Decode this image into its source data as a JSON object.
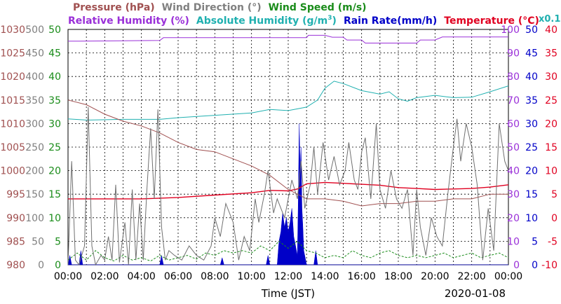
{
  "chart_data": {
    "type": "line",
    "header": {
      "row1": [
        {
          "text": "Pressure (hPa)",
          "color": "#a05050"
        },
        {
          "text": "Wind Direction (°)",
          "color": "#808080"
        },
        {
          "text": "Wind Speed (m/s)",
          "color": "#1a8c1a"
        }
      ],
      "row2": [
        {
          "text": "Relative Humidity (%)",
          "color": "#9a30d8"
        },
        {
          "text": "Absolute Humidity (g/m",
          "sup": "3",
          "tail": ")",
          "color": "#20b0b0"
        },
        {
          "text": "Rain Rate(mm/h)",
          "color": "#0000c8"
        },
        {
          "text": "Temperature (°C)",
          "color": "#e00020"
        }
      ],
      "multiplier": "x0.1",
      "multiplier_color": "#20b0b0"
    },
    "axes": {
      "pressure": {
        "min": 980,
        "max": 1030,
        "ticks": [
          "980",
          "985",
          "990",
          "995",
          "1000",
          "1005",
          "1010",
          "1015",
          "1020",
          "1025",
          "1030"
        ],
        "color": "#a05050"
      },
      "wind_direction": {
        "min": 0,
        "max": 500,
        "ticks": [
          "0",
          "50",
          "100",
          "150",
          "200",
          "250",
          "300",
          "350",
          "400",
          "450",
          "500"
        ],
        "color": "#808080"
      },
      "wind_speed": {
        "min": 0,
        "max": 50,
        "ticks": [
          "0",
          "5",
          "10",
          "15",
          "20",
          "25",
          "30",
          "35",
          "40",
          "45",
          "50"
        ],
        "color": "#1a8c1a"
      },
      "humidity": {
        "min": 0,
        "max": 100,
        "ticks": [
          "0",
          "10",
          "20",
          "30",
          "40",
          "50",
          "60",
          "70",
          "80",
          "90",
          "100"
        ],
        "color": "#9a30d8"
      },
      "rain_rate": {
        "min": 0,
        "max": 50,
        "ticks": [
          "0",
          "5",
          "10",
          "15",
          "20",
          "25",
          "30",
          "35",
          "40",
          "45",
          "50"
        ],
        "color": "#0000c8"
      },
      "temperature": {
        "min": -10,
        "max": 40,
        "ticks": [
          "-10",
          "-5",
          "0",
          "5",
          "10",
          "15",
          "20",
          "25",
          "30",
          "35",
          "40"
        ],
        "color": "#e00020"
      }
    },
    "x_ticks": [
      "00:00",
      "02:00",
      "04:00",
      "06:00",
      "08:00",
      "10:00",
      "12:00",
      "14:00",
      "16:00",
      "18:00",
      "20:00",
      "22:00",
      "00:00"
    ],
    "x_hours": [
      0,
      2,
      4,
      6,
      8,
      10,
      12,
      14,
      16,
      18,
      20,
      22,
      24
    ],
    "xlabel": "Time (JST)",
    "date": "2020-01-08",
    "grid": true,
    "series": [
      {
        "key": "relative_humidity",
        "axis": "humidity",
        "color": "#9a30d8",
        "points": [
          [
            0,
            95
          ],
          [
            0.6,
            95
          ],
          [
            5,
            95.3
          ],
          [
            5.2,
            96.5
          ],
          [
            13,
            96.5
          ],
          [
            13.1,
            97.5
          ],
          [
            14,
            97.5
          ],
          [
            14.4,
            96.7
          ],
          [
            15,
            96.7
          ],
          [
            15.2,
            95.5
          ],
          [
            16,
            95.5
          ],
          [
            16.2,
            94.2
          ],
          [
            19,
            94.2
          ],
          [
            19.2,
            95.5
          ],
          [
            20,
            95.5
          ],
          [
            20.4,
            96.8
          ],
          [
            24,
            96.8
          ]
        ]
      },
      {
        "key": "absolute_humidity",
        "axis": "humidity",
        "color": "#20b0b0",
        "points": [
          [
            0,
            62
          ],
          [
            1,
            61.5
          ],
          [
            3,
            61.8
          ],
          [
            5,
            61.8
          ],
          [
            6,
            62.5
          ],
          [
            8,
            63.5
          ],
          [
            10,
            64.5
          ],
          [
            11,
            66
          ],
          [
            12,
            65.5
          ],
          [
            13,
            67
          ],
          [
            13.6,
            70
          ],
          [
            14,
            75
          ],
          [
            14.5,
            78
          ],
          [
            15,
            77
          ],
          [
            16,
            74
          ],
          [
            17,
            72.5
          ],
          [
            17.5,
            73.5
          ],
          [
            18,
            70.5
          ],
          [
            18.5,
            69.5
          ],
          [
            19,
            71
          ],
          [
            20,
            72
          ],
          [
            21,
            71
          ],
          [
            22,
            71.2
          ],
          [
            23,
            73.5
          ],
          [
            24,
            76
          ]
        ]
      },
      {
        "key": "pressure",
        "axis": "pressure",
        "color": "#a05050",
        "points": [
          [
            0,
            1015
          ],
          [
            1,
            1014
          ],
          [
            2,
            1012
          ],
          [
            3,
            1010.5
          ],
          [
            4,
            1009.5
          ],
          [
            5,
            1008
          ],
          [
            6,
            1006
          ],
          [
            7,
            1004.5
          ],
          [
            8,
            1004
          ],
          [
            9,
            1002.5
          ],
          [
            10,
            1001
          ],
          [
            11,
            999
          ],
          [
            12,
            996
          ],
          [
            13,
            994
          ],
          [
            14,
            994
          ],
          [
            15,
            993.5
          ],
          [
            16,
            992.5
          ],
          [
            17,
            993
          ],
          [
            18,
            993
          ],
          [
            19,
            993.5
          ],
          [
            20,
            993.5
          ],
          [
            21,
            994
          ],
          [
            22,
            994
          ],
          [
            23,
            995
          ],
          [
            24,
            995
          ]
        ]
      },
      {
        "key": "temperature",
        "axis": "temperature",
        "color": "#e00020",
        "points": [
          [
            0,
            4
          ],
          [
            2,
            4
          ],
          [
            4,
            4
          ],
          [
            6,
            4.3
          ],
          [
            8,
            4.8
          ],
          [
            10,
            5.3
          ],
          [
            11,
            5.8
          ],
          [
            12,
            5.7
          ],
          [
            12.5,
            6.1
          ],
          [
            13,
            7.2
          ],
          [
            14,
            7.5
          ],
          [
            15,
            7.3
          ],
          [
            16,
            7.1
          ],
          [
            17,
            6.9
          ],
          [
            18,
            6.4
          ],
          [
            19,
            6.2
          ],
          [
            20,
            6.0
          ],
          [
            21,
            6.1
          ],
          [
            22,
            6.2
          ],
          [
            23,
            6.5
          ],
          [
            24,
            7
          ]
        ]
      },
      {
        "key": "wind_speed",
        "axis": "wind_speed",
        "color": "#1a8c1a",
        "dashed": true,
        "points": [
          [
            0,
            1
          ],
          [
            0.5,
            2.5
          ],
          [
            1,
            1
          ],
          [
            1.5,
            3
          ],
          [
            2,
            1.5
          ],
          [
            2.5,
            0.8
          ],
          [
            3,
            2
          ],
          [
            3.5,
            1
          ],
          [
            4,
            1.5
          ],
          [
            4.5,
            0.8
          ],
          [
            5,
            2
          ],
          [
            5.5,
            1
          ],
          [
            6,
            1.5
          ],
          [
            6.5,
            2
          ],
          [
            7,
            1.2
          ],
          [
            7.5,
            2.5
          ],
          [
            8,
            2
          ],
          [
            8.5,
            3
          ],
          [
            9,
            2.5
          ],
          [
            9.5,
            3
          ],
          [
            10,
            2.5
          ],
          [
            10.5,
            4
          ],
          [
            11,
            3
          ],
          [
            11.5,
            5
          ],
          [
            12,
            3.5
          ],
          [
            12.5,
            5
          ],
          [
            13,
            3
          ],
          [
            13.5,
            2.5
          ],
          [
            14,
            1.5
          ],
          [
            14.5,
            2
          ],
          [
            15,
            1.5
          ],
          [
            15.5,
            3
          ],
          [
            16,
            2
          ],
          [
            16.5,
            1.5
          ],
          [
            17,
            2.5
          ],
          [
            17.5,
            3
          ],
          [
            18,
            2
          ],
          [
            18.5,
            1.5
          ],
          [
            19,
            2
          ],
          [
            19.5,
            1.5
          ],
          [
            20,
            2
          ],
          [
            20.5,
            2.5
          ],
          [
            21,
            1.5
          ],
          [
            21.5,
            2
          ],
          [
            22,
            2.5
          ],
          [
            22.5,
            1.5
          ],
          [
            23,
            2
          ],
          [
            23.5,
            2.5
          ],
          [
            24,
            1.5
          ]
        ]
      },
      {
        "key": "wind_direction",
        "axis": "wind_direction",
        "color": "#707070",
        "points": [
          [
            0,
            0
          ],
          [
            0.2,
            220
          ],
          [
            0.4,
            10
          ],
          [
            0.6,
            0
          ],
          [
            0.9,
            40
          ],
          [
            1.1,
            335
          ],
          [
            1.3,
            40
          ],
          [
            1.5,
            0
          ],
          [
            1.8,
            20
          ],
          [
            2,
            10
          ],
          [
            2.2,
            60
          ],
          [
            2.4,
            10
          ],
          [
            2.6,
            170
          ],
          [
            2.8,
            5
          ],
          [
            3.1,
            90
          ],
          [
            3.3,
            0
          ],
          [
            3.5,
            160
          ],
          [
            3.7,
            10
          ],
          [
            3.9,
            130
          ],
          [
            4.1,
            10
          ],
          [
            4.3,
            160
          ],
          [
            4.5,
            290
          ],
          [
            4.7,
            140
          ],
          [
            4.9,
            330
          ],
          [
            5.1,
            80
          ],
          [
            5.3,
            10
          ],
          [
            5.5,
            30
          ],
          [
            5.8,
            20
          ],
          [
            6.2,
            10
          ],
          [
            6.6,
            40
          ],
          [
            7,
            20
          ],
          [
            7.4,
            10
          ],
          [
            7.8,
            40
          ],
          [
            8,
            100
          ],
          [
            8.3,
            60
          ],
          [
            8.6,
            130
          ],
          [
            9,
            90
          ],
          [
            9.3,
            10
          ],
          [
            9.6,
            60
          ],
          [
            9.9,
            30
          ],
          [
            10.2,
            140
          ],
          [
            10.4,
            90
          ],
          [
            10.7,
            150
          ],
          [
            10.9,
            200
          ],
          [
            11.2,
            110
          ],
          [
            11.4,
            140
          ],
          [
            11.8,
            100
          ],
          [
            12.2,
            180
          ],
          [
            12.5,
            140
          ],
          [
            12.7,
            220
          ],
          [
            12.9,
            120
          ],
          [
            13.2,
            170
          ],
          [
            13.4,
            250
          ],
          [
            13.6,
            150
          ],
          [
            13.9,
            260
          ],
          [
            14.2,
            180
          ],
          [
            14.5,
            230
          ],
          [
            14.8,
            170
          ],
          [
            15.1,
            200
          ],
          [
            15.3,
            260
          ],
          [
            15.6,
            180
          ],
          [
            15.8,
            160
          ],
          [
            16,
            240
          ],
          [
            16.2,
            270
          ],
          [
            16.5,
            140
          ],
          [
            16.8,
            300
          ],
          [
            17,
            160
          ],
          [
            17.3,
            120
          ],
          [
            17.6,
            200
          ],
          [
            17.9,
            140
          ],
          [
            18.2,
            120
          ],
          [
            18.5,
            160
          ],
          [
            18.8,
            20
          ],
          [
            19,
            160
          ],
          [
            19.2,
            80
          ],
          [
            19.5,
            20
          ],
          [
            19.8,
            100
          ],
          [
            20.1,
            60
          ],
          [
            20.4,
            40
          ],
          [
            20.7,
            150
          ],
          [
            21,
            250
          ],
          [
            21.2,
            310
          ],
          [
            21.4,
            220
          ],
          [
            21.7,
            300
          ],
          [
            22,
            250
          ],
          [
            22.3,
            170
          ],
          [
            22.6,
            10
          ],
          [
            22.9,
            120
          ],
          [
            23.2,
            30
          ],
          [
            23.5,
            300
          ],
          [
            23.8,
            220
          ],
          [
            24,
            200
          ]
        ]
      }
    ],
    "rain": {
      "axis": "rain_rate",
      "color": "#0000c8",
      "points": [
        [
          0,
          0
        ],
        [
          0.1,
          2
        ],
        [
          0.2,
          0
        ],
        [
          0.6,
          0
        ],
        [
          0.7,
          3
        ],
        [
          0.8,
          0
        ],
        [
          5,
          0
        ],
        [
          5.1,
          2
        ],
        [
          5.2,
          0
        ],
        [
          8.3,
          0
        ],
        [
          8.4,
          1.5
        ],
        [
          8.5,
          0
        ],
        [
          10.8,
          0
        ],
        [
          10.9,
          2
        ],
        [
          11,
          0
        ],
        [
          11.4,
          0
        ],
        [
          11.5,
          5
        ],
        [
          11.6,
          7
        ],
        [
          11.7,
          11
        ],
        [
          11.8,
          8
        ],
        [
          11.9,
          10
        ],
        [
          12,
          7
        ],
        [
          12.1,
          9
        ],
        [
          12.2,
          12
        ],
        [
          12.3,
          6
        ],
        [
          12.4,
          4
        ],
        [
          12.5,
          2
        ],
        [
          12.55,
          14
        ],
        [
          12.6,
          30
        ],
        [
          12.65,
          20
        ],
        [
          12.7,
          25
        ],
        [
          12.75,
          12
        ],
        [
          12.8,
          8
        ],
        [
          12.85,
          3
        ],
        [
          13,
          0
        ],
        [
          13.4,
          0
        ],
        [
          13.5,
          3
        ],
        [
          13.6,
          0
        ],
        [
          24,
          0
        ]
      ]
    }
  }
}
